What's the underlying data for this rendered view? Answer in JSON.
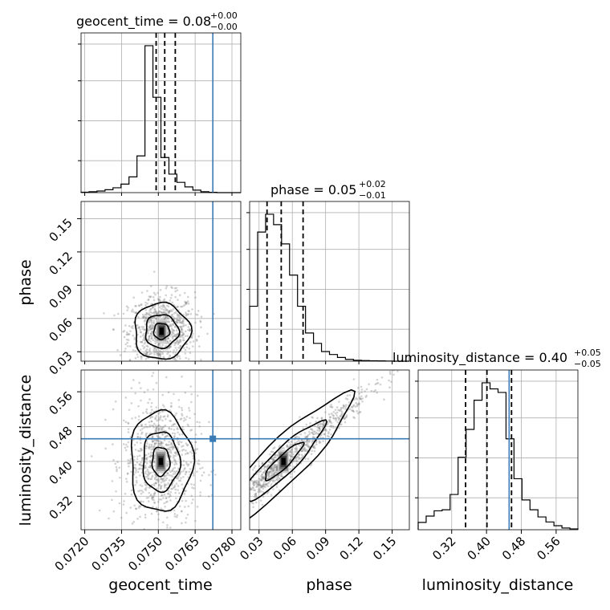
{
  "chart_data": {
    "type": "corner",
    "colors": {
      "truth": "#3b7bb5",
      "hist": "#000000",
      "grid": "#b0b0b0",
      "scatter": "#808080"
    },
    "params": [
      {
        "name": "geocent_time",
        "title": "geocent_time = 0.08",
        "title_sup": "+0.00",
        "title_sub": "−0.00",
        "axis_label": "geocent_time",
        "range": [
          0.07185,
          0.07836
        ],
        "ticks": [
          0.072,
          0.0735,
          0.075,
          0.0765,
          0.078
        ],
        "tick_labels": [
          "0.0720",
          "0.0735",
          "0.0750",
          "0.0765",
          "0.0780"
        ],
        "truth": 0.07722,
        "quantiles": [
          0.07491,
          0.07526,
          0.07569
        ],
        "hist": [
          0.003,
          0.006,
          0.011,
          0.02,
          0.033,
          0.058,
          0.107,
          0.25,
          1.0,
          0.649,
          0.239,
          0.126,
          0.07,
          0.039,
          0.017,
          0.006,
          0.002,
          0,
          0,
          0
        ]
      },
      {
        "name": "phase",
        "title": "phase = 0.05",
        "title_sup": "+0.02",
        "title_sub": "−0.01",
        "axis_label": "phase",
        "range": [
          0.0215,
          0.1655
        ],
        "ticks": [
          0.03,
          0.06,
          0.09,
          0.12,
          0.15
        ],
        "tick_labels": [
          "0.03",
          "0.06",
          "0.09",
          "0.12",
          "0.15"
        ],
        "truth": null,
        "quantiles": [
          0.0372,
          0.05,
          0.0697
        ],
        "hist": [
          0.37,
          0.87,
          0.99,
          0.92,
          0.79,
          0.58,
          0.37,
          0.19,
          0.12,
          0.065,
          0.045,
          0.025,
          0.012,
          0.006,
          0.004,
          0.003,
          0.002,
          0.001,
          0,
          0
        ]
      },
      {
        "name": "luminosity_distance",
        "title": "luminosity_distance = 0.40",
        "title_sup": "+0.05",
        "title_sub": "−0.05",
        "axis_label": "luminosity_distance",
        "range": [
          0.243,
          0.61
        ],
        "ticks": [
          0.32,
          0.4,
          0.48,
          0.56
        ],
        "tick_labels": [
          "0.32",
          "0.40",
          "0.48",
          "0.56"
        ],
        "truth": 0.452,
        "quantiles": [
          0.352,
          0.401,
          0.4575
        ],
        "hist": [
          0.035,
          0.065,
          0.09,
          0.095,
          0.168,
          0.345,
          0.478,
          0.617,
          0.7,
          0.671,
          0.654,
          0.433,
          0.243,
          0.142,
          0.095,
          0.061,
          0.037,
          0.019,
          0.008,
          0.004
        ]
      }
    ],
    "pairs": [
      {
        "x": "geocent_time",
        "y": "phase",
        "center": [
          0.07513,
          0.0485
        ],
        "spread": [
          0.00045,
          0.011
        ],
        "corr": 0.05,
        "truth_x": 0.07722
      },
      {
        "x": "geocent_time",
        "y": "luminosity_distance",
        "center": [
          0.0751,
          0.4
        ],
        "spread": [
          0.0005,
          0.05
        ],
        "corr": 0.0,
        "truth_x": 0.07722,
        "truth_y": 0.452
      },
      {
        "x": "phase",
        "y": "luminosity_distance",
        "center": [
          0.052,
          0.4
        ],
        "spread": [
          0.02,
          0.05
        ],
        "corr": 0.85,
        "truth_y": 0.452
      }
    ],
    "grid": true
  }
}
